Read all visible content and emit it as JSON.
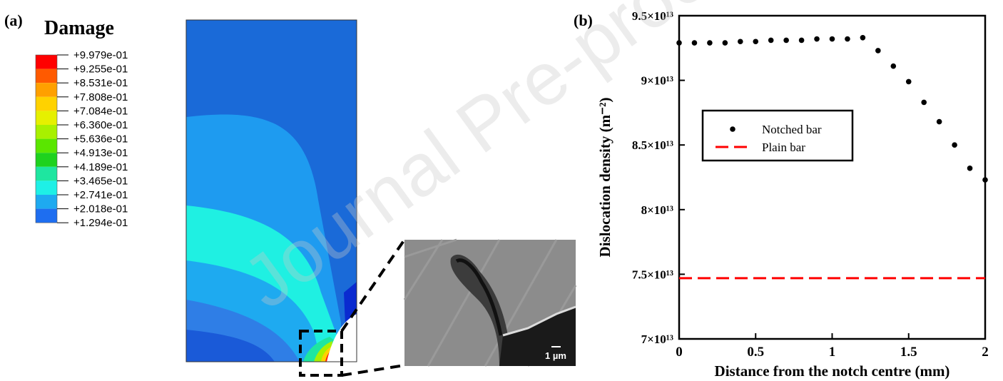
{
  "panel_a": {
    "label": "(a)",
    "title": "Damage",
    "legend": {
      "labels": [
        "+9.979e-01",
        "+9.255e-01",
        "+8.531e-01",
        "+7.808e-01",
        "+7.084e-01",
        "+6.360e-01",
        "+5.636e-01",
        "+4.913e-01",
        "+4.189e-01",
        "+3.465e-01",
        "+2.741e-01",
        "+2.018e-01",
        "+1.294e-01"
      ],
      "colors": [
        "#ff0000",
        "#ff5a00",
        "#ffa000",
        "#ffd200",
        "#e6f000",
        "#a8f000",
        "#5ae600",
        "#1ed21e",
        "#1ee6a0",
        "#1ef0e6",
        "#1eaaf0",
        "#1e6ef0",
        "#0028e6"
      ]
    },
    "scale_bar": "1 µm"
  },
  "watermark": "Journal Pre-proof",
  "chart_data": {
    "type": "scatter",
    "label": "(b)",
    "x_label": "Distance from the notch centre (mm)",
    "y_label": "Dislocation density (m⁻²)",
    "xlim": [
      0,
      2
    ],
    "xticks": [
      0,
      0.5,
      1,
      1.5,
      2
    ],
    "ylim": [
      70000000000000,
      95000000000000
    ],
    "yticks": [
      {
        "value": 70000000000000,
        "label": "7×10¹³"
      },
      {
        "value": 75000000000000,
        "label": "7.5×10¹³"
      },
      {
        "value": 80000000000000,
        "label": "8×10¹³"
      },
      {
        "value": 85000000000000,
        "label": "8.5×10¹³"
      },
      {
        "value": 90000000000000,
        "label": "9×10¹³"
      },
      {
        "value": 95000000000000,
        "label": "9.5×10¹³"
      }
    ],
    "series": [
      {
        "name": "Notched bar",
        "color": "#000000",
        "marker": "dot",
        "x": [
          0,
          0.1,
          0.2,
          0.3,
          0.4,
          0.5,
          0.6,
          0.7,
          0.8,
          0.9,
          1,
          1.1,
          1.2,
          1.3,
          1.4,
          1.5,
          1.6,
          1.7,
          1.8,
          1.9,
          2
        ],
        "values": [
          92900000000000,
          92900000000000,
          92900000000000,
          92900000000000,
          93000000000000,
          93000000000000,
          93100000000000,
          93100000000000,
          93100000000000,
          93200000000000,
          93200000000000,
          93200000000000,
          93300000000000,
          92300000000000,
          91100000000000,
          89900000000000,
          88300000000000,
          86800000000000,
          85000000000000,
          83200000000000,
          82300000000000
        ]
      },
      {
        "name": "Plain bar",
        "color": "#ff0000",
        "marker": "dash",
        "x": [
          0,
          2
        ],
        "values": [
          74700000000000,
          74700000000000
        ]
      }
    ]
  }
}
